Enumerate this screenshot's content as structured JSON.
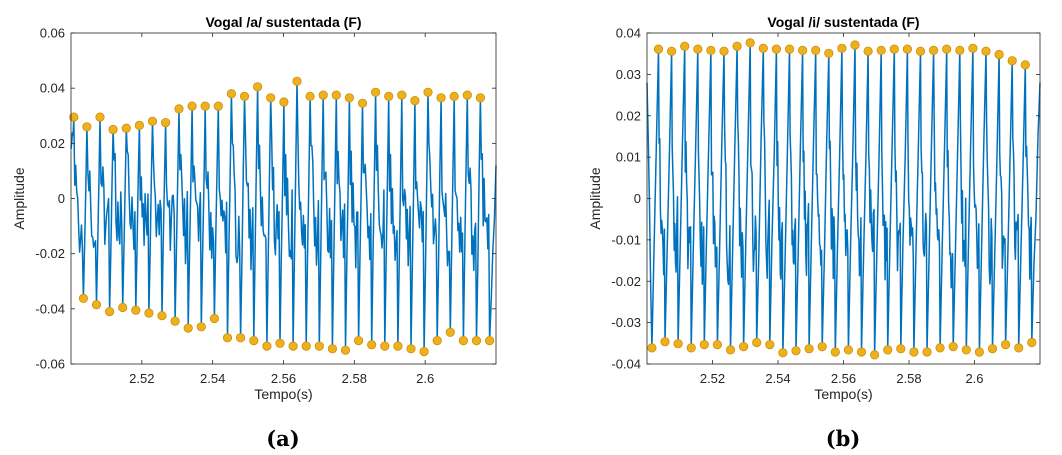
{
  "chart_data": [
    {
      "type": "line",
      "title": "Vogal /a/ sustentada (F)",
      "xlabel": "Tempo(s)",
      "ylabel": "Amplitude",
      "caption": "(a)",
      "xlim": [
        2.5,
        2.62
      ],
      "ylim": [
        -0.06,
        0.06
      ],
      "xticks": [
        2.52,
        2.54,
        2.56,
        2.58,
        2.6
      ],
      "xtick_labels": [
        "2.52",
        "2.54",
        "2.56",
        "2.58",
        "2.6"
      ],
      "yticks": [
        -0.06,
        -0.04,
        -0.02,
        0,
        0.02,
        0.04,
        0.06
      ],
      "ytick_labels": [
        "-0.06",
        "-0.04",
        "-0.02",
        "0",
        "0.02",
        "0.04",
        "0.06"
      ],
      "grid": false,
      "line_color": "#0072BD",
      "marker_color": "#EDB120",
      "signal_start": 0.018,
      "signal_end": 0.012,
      "series": [
        {
          "kind": "peaks",
          "x": [
            2.5008,
            2.5045,
            2.5082,
            2.5119,
            2.5156,
            2.5193,
            2.523,
            2.5267,
            2.5305,
            2.5342,
            2.5379,
            2.5416,
            2.5453,
            2.549,
            2.5527,
            2.5564,
            2.5601,
            2.5638,
            2.5675,
            2.5712,
            2.5749,
            2.5786,
            2.5823,
            2.586,
            2.5897,
            2.5934,
            2.5971,
            2.6008,
            2.6045,
            2.6082,
            2.6119,
            2.6156
          ],
          "y": [
            0.0295,
            0.026,
            0.0295,
            0.025,
            0.0255,
            0.0265,
            0.028,
            0.0275,
            0.0325,
            0.0335,
            0.0335,
            0.0335,
            0.038,
            0.037,
            0.0405,
            0.0365,
            0.035,
            0.0425,
            0.037,
            0.0375,
            0.0375,
            0.0365,
            0.0345,
            0.0385,
            0.037,
            0.0375,
            0.0355,
            0.0385,
            0.0365,
            0.037,
            0.0375,
            0.0365
          ]
        },
        {
          "kind": "valleys",
          "x": [
            2.5035,
            2.5072,
            2.5109,
            2.5146,
            2.5183,
            2.522,
            2.5257,
            2.5294,
            2.5331,
            2.5368,
            2.5405,
            2.5442,
            2.5479,
            2.5516,
            2.5553,
            2.559,
            2.5627,
            2.5664,
            2.5701,
            2.5738,
            2.5775,
            2.5812,
            2.5849,
            2.5886,
            2.5923,
            2.596,
            2.5997,
            2.6034,
            2.6071,
            2.6108,
            2.6145,
            2.6182
          ],
          "y": [
            -0.0362,
            -0.0385,
            -0.041,
            -0.0395,
            -0.0405,
            -0.0415,
            -0.0425,
            -0.0445,
            -0.047,
            -0.0465,
            -0.0435,
            -0.0505,
            -0.0505,
            -0.0515,
            -0.0535,
            -0.0525,
            -0.0535,
            -0.0535,
            -0.0535,
            -0.0545,
            -0.055,
            -0.0515,
            -0.053,
            -0.0535,
            -0.0535,
            -0.0545,
            -0.0555,
            -0.0515,
            -0.0485,
            -0.0515,
            -0.0515,
            -0.0515
          ]
        }
      ]
    },
    {
      "type": "line",
      "title": "Vogal /i/ sustentada (F)",
      "xlabel": "Tempo(s)",
      "ylabel": "Amplitude",
      "caption": "(b)",
      "xlim": [
        2.5,
        2.62
      ],
      "ylim": [
        -0.04,
        0.04
      ],
      "xticks": [
        2.52,
        2.54,
        2.56,
        2.58,
        2.6
      ],
      "xtick_labels": [
        "2.52",
        "2.54",
        "2.56",
        "2.58",
        "2.6"
      ],
      "yticks": [
        -0.04,
        -0.03,
        -0.02,
        -0.01,
        0,
        0.01,
        0.02,
        0.03,
        0.04
      ],
      "ytick_labels": [
        "-0.04",
        "-0.03",
        "-0.02",
        "-0.01",
        "0",
        "0.01",
        "0.02",
        "0.03",
        "0.04"
      ],
      "grid": false,
      "line_color": "#0072BD",
      "marker_color": "#EDB120",
      "signal_start": 0.028,
      "signal_end": 0.028,
      "series": [
        {
          "kind": "peaks",
          "x": [
            2.5035,
            2.5075,
            2.5115,
            2.5155,
            2.5195,
            2.5235,
            2.5275,
            2.5315,
            2.5355,
            2.5395,
            2.5435,
            2.5475,
            2.5515,
            2.5555,
            2.5595,
            2.5635,
            2.5675,
            2.5715,
            2.5755,
            2.5795,
            2.5835,
            2.5875,
            2.5915,
            2.5955,
            2.5995,
            2.6035,
            2.6075,
            2.6115,
            2.6155
          ],
          "y": [
            0.0361,
            0.0356,
            0.0368,
            0.0361,
            0.0358,
            0.0356,
            0.0368,
            0.0376,
            0.0363,
            0.0361,
            0.0361,
            0.0358,
            0.0358,
            0.0351,
            0.0363,
            0.0371,
            0.0356,
            0.0358,
            0.0361,
            0.0361,
            0.0356,
            0.0358,
            0.0361,
            0.0358,
            0.0363,
            0.0356,
            0.0348,
            0.0333,
            0.0323
          ]
        },
        {
          "kind": "valleys",
          "x": [
            2.5015,
            2.5055,
            2.5095,
            2.5135,
            2.5175,
            2.5215,
            2.5255,
            2.5295,
            2.5335,
            2.5375,
            2.5415,
            2.5455,
            2.5495,
            2.5535,
            2.5575,
            2.5615,
            2.5655,
            2.5695,
            2.5735,
            2.5775,
            2.5815,
            2.5855,
            2.5895,
            2.5935,
            2.5975,
            2.6015,
            2.6055,
            2.6095,
            2.6135,
            2.6175
          ],
          "y": [
            -0.0361,
            -0.0346,
            -0.0351,
            -0.0361,
            -0.0353,
            -0.0353,
            -0.0366,
            -0.0358,
            -0.0348,
            -0.0353,
            -0.0373,
            -0.0368,
            -0.0363,
            -0.0358,
            -0.0371,
            -0.0366,
            -0.0371,
            -0.0378,
            -0.0366,
            -0.0363,
            -0.0371,
            -0.0371,
            -0.0361,
            -0.0358,
            -0.0366,
            -0.0371,
            -0.0363,
            -0.0353,
            -0.0361,
            -0.0348
          ]
        }
      ]
    }
  ]
}
